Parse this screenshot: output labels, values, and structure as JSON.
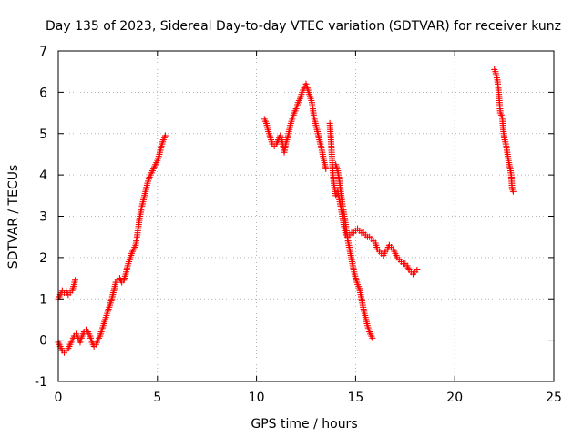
{
  "chart_data": {
    "type": "scatter",
    "title": "Day 135 of 2023, Sidereal Day-to-day VTEC variation (SDTVAR) for receiver kunz",
    "xlabel": "GPS time / hours",
    "ylabel": "SDTVAR / TECUs",
    "xlim": [
      0,
      25
    ],
    "ylim": [
      -1,
      7
    ],
    "xticks": [
      0,
      5,
      10,
      15,
      20,
      25
    ],
    "yticks": [
      -1,
      0,
      1,
      2,
      3,
      4,
      5,
      6,
      7
    ],
    "grid": true,
    "legend": "none",
    "marker": "plus",
    "series": [
      {
        "color": "#ff0000",
        "segments": [
          [
            [
              0.0,
              1.0
            ],
            [
              0.1,
              1.1
            ],
            [
              0.2,
              1.2
            ],
            [
              0.3,
              1.15
            ],
            [
              0.4,
              1.2
            ],
            [
              0.5,
              1.1
            ],
            [
              0.6,
              1.15
            ],
            [
              0.7,
              1.2
            ],
            [
              0.8,
              1.35
            ],
            [
              0.85,
              1.45
            ]
          ],
          [
            [
              0.0,
              -0.05
            ],
            [
              0.1,
              -0.15
            ],
            [
              0.2,
              -0.25
            ],
            [
              0.3,
              -0.3
            ],
            [
              0.4,
              -0.25
            ],
            [
              0.5,
              -0.2
            ],
            [
              0.6,
              -0.1
            ],
            [
              0.7,
              0.0
            ],
            [
              0.8,
              0.1
            ],
            [
              0.9,
              0.15
            ],
            [
              1.0,
              0.05
            ],
            [
              1.1,
              -0.05
            ],
            [
              1.2,
              0.1
            ],
            [
              1.3,
              0.2
            ],
            [
              1.4,
              0.25
            ],
            [
              1.5,
              0.2
            ],
            [
              1.6,
              0.1
            ],
            [
              1.7,
              -0.05
            ],
            [
              1.8,
              -0.15
            ],
            [
              1.9,
              -0.1
            ],
            [
              2.0,
              0.0
            ],
            [
              2.1,
              0.1
            ],
            [
              2.2,
              0.25
            ],
            [
              2.3,
              0.4
            ],
            [
              2.4,
              0.55
            ],
            [
              2.5,
              0.7
            ],
            [
              2.6,
              0.85
            ],
            [
              2.7,
              1.0
            ],
            [
              2.8,
              1.2
            ],
            [
              2.9,
              1.4
            ],
            [
              3.0,
              1.45
            ],
            [
              3.1,
              1.5
            ],
            [
              3.2,
              1.4
            ],
            [
              3.3,
              1.45
            ],
            [
              3.4,
              1.6
            ],
            [
              3.5,
              1.8
            ],
            [
              3.6,
              1.95
            ],
            [
              3.7,
              2.1
            ],
            [
              3.8,
              2.2
            ],
            [
              3.9,
              2.3
            ],
            [
              4.0,
              2.6
            ],
            [
              4.1,
              2.95
            ],
            [
              4.2,
              3.2
            ],
            [
              4.3,
              3.4
            ],
            [
              4.4,
              3.6
            ],
            [
              4.5,
              3.8
            ],
            [
              4.6,
              3.95
            ],
            [
              4.7,
              4.05
            ],
            [
              4.8,
              4.15
            ],
            [
              4.9,
              4.25
            ],
            [
              5.0,
              4.35
            ],
            [
              5.1,
              4.5
            ],
            [
              5.2,
              4.7
            ],
            [
              5.3,
              4.85
            ],
            [
              5.4,
              4.95
            ]
          ],
          [
            [
              10.4,
              5.35
            ],
            [
              10.5,
              5.25
            ],
            [
              10.6,
              5.05
            ],
            [
              10.7,
              4.9
            ],
            [
              10.8,
              4.75
            ],
            [
              10.9,
              4.7
            ],
            [
              11.0,
              4.75
            ],
            [
              11.1,
              4.85
            ],
            [
              11.2,
              4.95
            ],
            [
              11.3,
              4.8
            ],
            [
              11.4,
              4.55
            ],
            [
              11.5,
              4.8
            ],
            [
              11.6,
              4.95
            ],
            [
              11.7,
              5.2
            ],
            [
              11.8,
              5.35
            ],
            [
              11.9,
              5.5
            ],
            [
              12.0,
              5.6
            ],
            [
              12.1,
              5.75
            ],
            [
              12.2,
              5.85
            ],
            [
              12.3,
              6.0
            ],
            [
              12.4,
              6.1
            ],
            [
              12.5,
              6.2
            ],
            [
              12.6,
              6.05
            ],
            [
              12.7,
              5.9
            ],
            [
              12.8,
              5.75
            ],
            [
              12.9,
              5.4
            ],
            [
              13.0,
              5.2
            ],
            [
              13.1,
              5.0
            ],
            [
              13.2,
              4.8
            ],
            [
              13.3,
              4.6
            ],
            [
              13.4,
              4.35
            ],
            [
              13.5,
              4.15
            ]
          ],
          [
            [
              13.7,
              5.25
            ],
            [
              13.75,
              4.9
            ],
            [
              13.8,
              4.5
            ],
            [
              13.85,
              4.1
            ],
            [
              13.9,
              3.8
            ],
            [
              14.0,
              3.5
            ],
            [
              14.1,
              3.6
            ],
            [
              14.2,
              3.35
            ],
            [
              14.3,
              3.1
            ],
            [
              14.4,
              2.8
            ],
            [
              14.5,
              2.55
            ],
            [
              14.6,
              2.5
            ],
            [
              14.7,
              2.55
            ],
            [
              14.8,
              2.6
            ],
            [
              14.9,
              2.6
            ],
            [
              15.0,
              2.65
            ],
            [
              15.1,
              2.7
            ],
            [
              15.2,
              2.65
            ],
            [
              15.3,
              2.6
            ],
            [
              15.4,
              2.6
            ],
            [
              15.5,
              2.55
            ],
            [
              15.6,
              2.5
            ],
            [
              15.7,
              2.5
            ],
            [
              15.8,
              2.45
            ],
            [
              15.9,
              2.4
            ],
            [
              16.0,
              2.35
            ],
            [
              16.1,
              2.2
            ],
            [
              16.2,
              2.15
            ],
            [
              16.3,
              2.1
            ],
            [
              16.4,
              2.05
            ],
            [
              16.5,
              2.15
            ],
            [
              16.6,
              2.2
            ],
            [
              16.7,
              2.3
            ],
            [
              16.8,
              2.25
            ],
            [
              16.9,
              2.2
            ],
            [
              17.0,
              2.1
            ],
            [
              17.1,
              2.0
            ],
            [
              17.2,
              1.95
            ],
            [
              17.3,
              1.9
            ],
            [
              17.4,
              1.85
            ],
            [
              17.5,
              1.85
            ],
            [
              17.6,
              1.8
            ],
            [
              17.7,
              1.7
            ],
            [
              17.8,
              1.65
            ],
            [
              17.9,
              1.6
            ],
            [
              18.0,
              1.65
            ],
            [
              18.1,
              1.7
            ]
          ],
          [
            [
              14.0,
              4.25
            ],
            [
              14.1,
              4.1
            ],
            [
              14.2,
              3.8
            ],
            [
              14.3,
              3.4
            ],
            [
              14.4,
              3.1
            ],
            [
              14.5,
              2.8
            ],
            [
              14.6,
              2.45
            ],
            [
              14.7,
              2.2
            ],
            [
              14.8,
              1.95
            ],
            [
              14.9,
              1.7
            ],
            [
              15.0,
              1.5
            ],
            [
              15.1,
              1.35
            ],
            [
              15.2,
              1.25
            ],
            [
              15.3,
              1.0
            ],
            [
              15.4,
              0.75
            ],
            [
              15.5,
              0.55
            ],
            [
              15.6,
              0.35
            ],
            [
              15.7,
              0.2
            ],
            [
              15.8,
              0.1
            ],
            [
              15.85,
              0.05
            ]
          ],
          [
            [
              22.0,
              6.55
            ],
            [
              22.05,
              6.5
            ],
            [
              22.1,
              6.4
            ],
            [
              22.15,
              6.3
            ],
            [
              22.2,
              6.1
            ],
            [
              22.25,
              5.8
            ],
            [
              22.3,
              5.5
            ],
            [
              22.4,
              5.4
            ],
            [
              22.45,
              5.1
            ],
            [
              22.5,
              4.9
            ],
            [
              22.6,
              4.7
            ],
            [
              22.65,
              4.55
            ],
            [
              22.7,
              4.4
            ],
            [
              22.75,
              4.25
            ],
            [
              22.8,
              4.15
            ],
            [
              22.85,
              4.0
            ],
            [
              22.9,
              3.65
            ],
            [
              22.95,
              3.6
            ]
          ]
        ]
      }
    ]
  }
}
